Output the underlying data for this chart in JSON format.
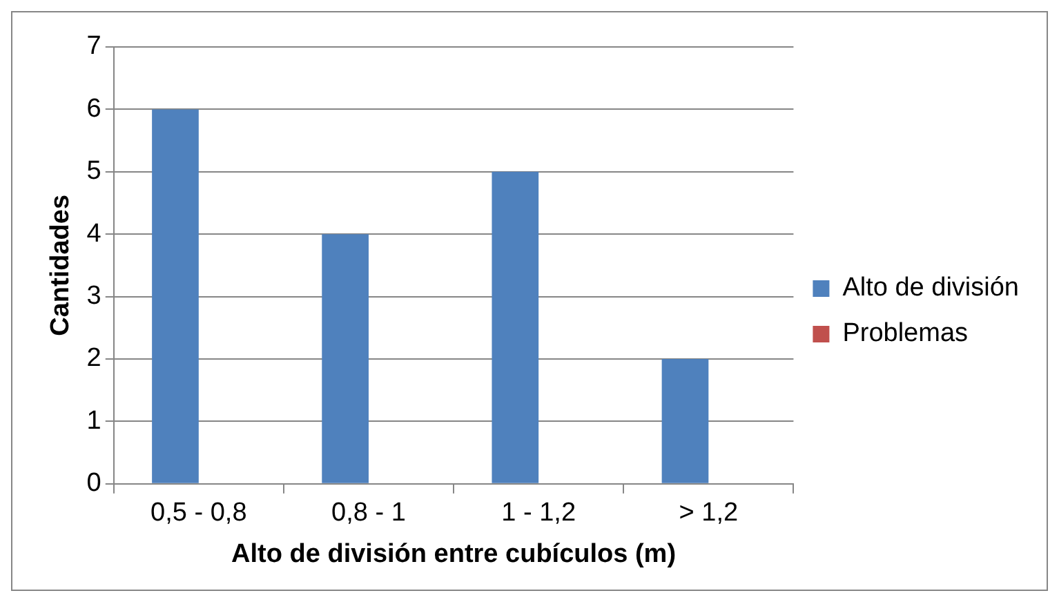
{
  "chart_data": {
    "type": "bar",
    "xlabel": "Alto de división entre cubículos (m)",
    "ylabel": "Cantidades",
    "categories": [
      "0,5 - 0,8",
      "0,8 - 1",
      "1 - 1,2",
      "> 1,2"
    ],
    "series": [
      {
        "name": "Alto de división",
        "color": "#4f81bd",
        "values": [
          6,
          4,
          5,
          2
        ]
      },
      {
        "name": "Problemas",
        "color": "#c0504d",
        "values": [
          null,
          null,
          null,
          null
        ]
      }
    ],
    "ylim": [
      0,
      7
    ],
    "yticks": [
      0,
      1,
      2,
      3,
      4,
      5,
      6,
      7
    ],
    "grid": "y",
    "legend": "right"
  }
}
